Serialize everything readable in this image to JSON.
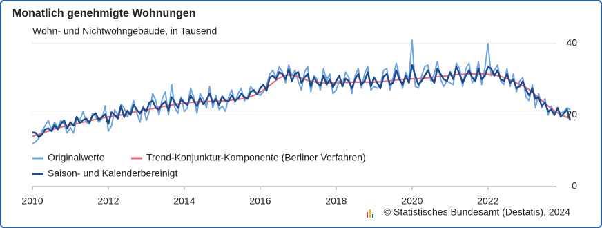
{
  "chart_data": {
    "type": "line",
    "title": "Monatlich genehmigte Wohnungen",
    "subtitle": "Wohn- und Nichtwohngebäude, in Tausend",
    "source": "© Statistisches Bundesamt (Destatis), 2024",
    "categories": [
      "2010",
      null,
      null,
      null,
      null,
      null,
      null,
      null,
      null,
      null,
      null,
      null,
      null,
      null,
      null,
      null,
      null,
      null,
      null,
      null,
      null,
      null,
      null,
      null,
      "2012",
      null,
      null,
      null,
      null,
      null,
      null,
      null,
      null,
      null,
      null,
      null,
      null,
      null,
      null,
      null,
      null,
      null,
      null,
      null,
      null,
      null,
      null,
      null,
      "2014",
      null,
      null,
      null,
      null,
      null,
      null,
      null,
      null,
      null,
      null,
      null,
      null,
      null,
      null,
      null,
      null,
      null,
      null,
      null,
      null,
      null,
      null,
      null,
      "2016",
      null,
      null,
      null,
      null,
      null,
      null,
      null,
      null,
      null,
      null,
      null,
      null,
      null,
      null,
      null,
      null,
      null,
      null,
      null,
      null,
      null,
      null,
      null,
      "2018",
      null,
      null,
      null,
      null,
      null,
      null,
      null,
      null,
      null,
      null,
      null,
      null,
      null,
      null,
      null,
      null,
      null,
      null,
      null,
      null,
      null,
      null,
      null,
      "2020",
      null,
      null,
      null,
      null,
      null,
      null,
      null,
      null,
      null,
      null,
      null,
      null,
      null,
      null,
      null,
      null,
      null,
      null,
      null,
      null,
      null,
      null,
      null,
      "2022",
      null,
      null,
      null,
      null,
      null,
      null,
      null,
      null,
      null,
      null,
      null,
      null,
      null,
      null,
      null,
      null,
      null,
      null,
      null,
      null,
      null,
      null,
      null,
      null,
      null,
      null
    ],
    "series": [
      {
        "name": "Originalwerte",
        "color": "#6fa3e0",
        "width": 2,
        "values": [
          12.0,
          12.5,
          13.5,
          15.5,
          17.0,
          18.5,
          16.0,
          18.0,
          16.5,
          18.5,
          17.5,
          15.0,
          16.5,
          15.0,
          19.0,
          18.5,
          21.0,
          18.0,
          17.5,
          20.5,
          19.5,
          18.0,
          19.0,
          22.5,
          15.5,
          17.0,
          21.5,
          20.0,
          23.0,
          22.0,
          19.5,
          21.0,
          24.0,
          20.5,
          18.0,
          22.5,
          18.5,
          21.0,
          26.0,
          24.0,
          20.0,
          24.5,
          26.5,
          20.0,
          28.5,
          22.0,
          20.5,
          25.0,
          21.0,
          22.0,
          27.5,
          25.0,
          20.5,
          26.0,
          24.5,
          22.0,
          28.0,
          22.0,
          25.5,
          21.5,
          22.5,
          21.0,
          25.0,
          27.0,
          23.5,
          26.0,
          27.5,
          24.0,
          25.0,
          28.0,
          26.5,
          26.0,
          25.5,
          26.5,
          28.0,
          31.5,
          32.5,
          30.5,
          33.5,
          32.0,
          29.0,
          34.0,
          31.0,
          32.5,
          29.5,
          27.0,
          32.0,
          33.5,
          26.5,
          31.0,
          30.0,
          27.0,
          33.0,
          29.5,
          31.5,
          26.0,
          27.0,
          29.5,
          28.5,
          32.0,
          30.5,
          26.0,
          31.0,
          33.0,
          27.5,
          31.5,
          33.5,
          27.0,
          28.0,
          27.5,
          28.5,
          32.5,
          33.0,
          27.0,
          30.5,
          34.5,
          31.0,
          27.5,
          32.0,
          30.0,
          41.0,
          28.0,
          27.5,
          31.0,
          33.5,
          34.0,
          29.5,
          31.5,
          35.0,
          30.0,
          28.0,
          29.5,
          29.0,
          28.5,
          34.5,
          33.0,
          28.0,
          33.0,
          34.5,
          29.0,
          30.5,
          35.0,
          28.5,
          33.0,
          40.0,
          31.0,
          32.5,
          34.0,
          29.5,
          28.5,
          33.0,
          28.0,
          31.5,
          26.5,
          29.5,
          30.5,
          25.0,
          24.0,
          28.5,
          22.0,
          26.0,
          22.0,
          24.5,
          20.0,
          22.5,
          20.5,
          21.5,
          20.5,
          21.0,
          22.0,
          21.5
        ]
      },
      {
        "name": "Trend-Konjunktur-Komponente (Berliner Verfahren)",
        "color": "#e8687c",
        "width": 2,
        "values": [
          14.0,
          14.3,
          14.6,
          14.9,
          15.2,
          15.5,
          15.8,
          16.1,
          16.3,
          16.6,
          16.8,
          17.0,
          17.2,
          17.4,
          17.6,
          17.8,
          18.0,
          18.2,
          18.4,
          18.6,
          18.8,
          19.0,
          19.2,
          19.3,
          19.5,
          19.6,
          19.8,
          19.9,
          20.0,
          20.2,
          20.4,
          20.6,
          20.8,
          21.0,
          21.1,
          21.3,
          21.5,
          21.6,
          21.8,
          22.0,
          22.2,
          22.3,
          22.5,
          22.7,
          22.8,
          23.0,
          23.1,
          23.2,
          23.3,
          23.4,
          23.5,
          23.6,
          23.7,
          23.7,
          23.8,
          23.8,
          23.8,
          23.9,
          23.9,
          23.9,
          24.0,
          24.0,
          24.1,
          24.2,
          24.3,
          24.4,
          24.5,
          24.7,
          24.9,
          25.2,
          25.5,
          25.9,
          26.4,
          27.0,
          27.6,
          28.3,
          29.0,
          29.7,
          30.3,
          30.8,
          31.1,
          31.2,
          31.1,
          30.9,
          30.6,
          30.3,
          30.0,
          29.7,
          29.5,
          29.3,
          29.2,
          29.1,
          29.0,
          29.0,
          29.0,
          29.0,
          29.0,
          29.0,
          29.1,
          29.1,
          29.1,
          29.2,
          29.2,
          29.2,
          29.2,
          29.2,
          29.2,
          29.2,
          29.2,
          29.3,
          29.3,
          29.4,
          29.5,
          29.6,
          29.7,
          29.8,
          29.9,
          30.0,
          30.0,
          30.1,
          30.1,
          30.2,
          30.2,
          30.3,
          30.3,
          30.4,
          30.5,
          30.6,
          30.7,
          30.8,
          30.9,
          31.0,
          31.1,
          31.2,
          31.3,
          31.4,
          31.4,
          31.5,
          31.5,
          31.5,
          31.5,
          31.5,
          31.5,
          31.5,
          31.4,
          31.3,
          31.2,
          31.0,
          30.8,
          30.5,
          30.2,
          29.8,
          29.4,
          29.0,
          28.6,
          28.2,
          27.7,
          27.1,
          26.4,
          25.6,
          24.8,
          24.0,
          23.2,
          22.5,
          21.8,
          21.2,
          20.6,
          20.1,
          19.7,
          19.3,
          18.9
        ]
      },
      {
        "name": "Saison- und Kalenderbereinigt",
        "color": "#1d4a8a",
        "width": 2.5,
        "values": [
          15.2,
          15.0,
          13.8,
          14.5,
          16.0,
          16.3,
          15.5,
          17.2,
          16.0,
          17.5,
          18.5,
          16.3,
          18.0,
          17.0,
          19.5,
          17.8,
          18.6,
          19.0,
          17.9,
          19.8,
          20.5,
          18.6,
          19.5,
          20.2,
          17.5,
          20.8,
          20.0,
          19.0,
          22.5,
          19.4,
          21.2,
          20.0,
          22.8,
          21.5,
          20.4,
          22.0,
          21.0,
          23.5,
          24.0,
          22.0,
          21.5,
          23.0,
          23.8,
          21.2,
          25.0,
          23.5,
          22.0,
          24.5,
          23.5,
          22.8,
          25.5,
          24.0,
          22.5,
          24.8,
          23.0,
          24.2,
          26.0,
          23.5,
          24.5,
          22.8,
          25.2,
          24.0,
          23.8,
          25.5,
          24.0,
          24.6,
          26.0,
          25.0,
          24.5,
          26.5,
          27.0,
          25.8,
          27.5,
          28.5,
          26.8,
          30.5,
          31.0,
          30.0,
          32.0,
          31.5,
          30.0,
          32.8,
          29.5,
          31.5,
          32.0,
          29.0,
          30.5,
          31.5,
          28.0,
          30.5,
          29.0,
          28.2,
          31.0,
          28.5,
          30.0,
          27.8,
          29.5,
          31.0,
          28.0,
          30.2,
          29.5,
          27.5,
          30.0,
          31.5,
          28.5,
          29.5,
          32.0,
          28.0,
          30.5,
          29.0,
          27.5,
          30.8,
          31.5,
          28.5,
          29.0,
          32.5,
          30.0,
          28.5,
          31.0,
          29.0,
          34.0,
          31.0,
          28.5,
          29.5,
          31.0,
          32.5,
          30.5,
          29.0,
          33.0,
          31.5,
          30.0,
          29.5,
          32.0,
          30.0,
          33.5,
          31.5,
          29.0,
          31.0,
          32.5,
          30.5,
          29.5,
          33.0,
          30.0,
          31.0,
          33.5,
          33.0,
          31.0,
          32.5,
          30.0,
          29.5,
          31.5,
          29.0,
          30.0,
          27.5,
          28.0,
          29.5,
          27.0,
          25.5,
          27.5,
          24.5,
          25.0,
          22.5,
          23.5,
          21.0,
          21.5,
          20.0,
          22.0,
          19.5,
          20.5,
          21.5,
          18.5
        ]
      }
    ],
    "ylim": [
      0,
      40
    ],
    "yticks": [
      0,
      20,
      40
    ],
    "grid": true
  }
}
